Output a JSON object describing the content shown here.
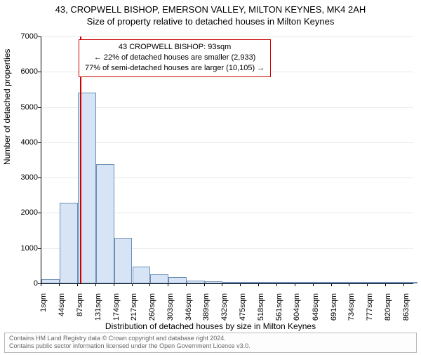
{
  "title_main": "43, CROPWELL BISHOP, EMERSON VALLEY, MILTON KEYNES, MK4 2AH",
  "title_sub": "Size of property relative to detached houses in Milton Keynes",
  "info_box": {
    "line1": "43 CROPWELL BISHOP: 93sqm",
    "line2": "← 22% of detached houses are smaller (2,933)",
    "line3": "77% of semi-detached houses are larger (10,105) →"
  },
  "y_axis_label": "Number of detached properties",
  "x_axis_label": "Distribution of detached houses by size in Milton Keynes",
  "footer": {
    "line1": "Contains HM Land Registry data © Crown copyright and database right 2024.",
    "line2": "Contains public sector information licensed under the Open Government Licence v3.0."
  },
  "chart": {
    "type": "histogram",
    "bar_fill": "#d6e4f5",
    "bar_border": "#6b8fb5",
    "marker_color": "#cc0000",
    "background_color": "#ffffff",
    "grid_color": "#e8e8e8",
    "axis_color": "#000000",
    "ylim": [
      0,
      7000
    ],
    "ytick_step": 1000,
    "y_ticks": [
      0,
      1000,
      2000,
      3000,
      4000,
      5000,
      6000,
      7000
    ],
    "x_tick_positions": [
      1,
      44,
      87,
      131,
      174,
      217,
      260,
      303,
      346,
      389,
      432,
      475,
      518,
      561,
      604,
      648,
      691,
      734,
      777,
      820,
      863
    ],
    "x_tick_labels": [
      "1sqm",
      "44sqm",
      "87sqm",
      "131sqm",
      "174sqm",
      "217sqm",
      "260sqm",
      "303sqm",
      "346sqm",
      "389sqm",
      "432sqm",
      "475sqm",
      "518sqm",
      "561sqm",
      "604sqm",
      "648sqm",
      "691sqm",
      "734sqm",
      "777sqm",
      "820sqm",
      "863sqm"
    ],
    "xlim": [
      1,
      885
    ],
    "marker_x": 93,
    "bin_width": 43,
    "bars": [
      {
        "x_center": 22.5,
        "value": 110
      },
      {
        "x_center": 65.5,
        "value": 2290
      },
      {
        "x_center": 109,
        "value": 5400
      },
      {
        "x_center": 152.5,
        "value": 3390
      },
      {
        "x_center": 195.5,
        "value": 1300
      },
      {
        "x_center": 238.5,
        "value": 470
      },
      {
        "x_center": 281.5,
        "value": 250
      },
      {
        "x_center": 324.5,
        "value": 170
      },
      {
        "x_center": 367.5,
        "value": 80
      },
      {
        "x_center": 410.5,
        "value": 55
      },
      {
        "x_center": 453.5,
        "value": 18
      },
      {
        "x_center": 496.5,
        "value": 12
      },
      {
        "x_center": 539.5,
        "value": 8
      },
      {
        "x_center": 582.5,
        "value": 7
      },
      {
        "x_center": 626,
        "value": 6
      },
      {
        "x_center": 669.5,
        "value": 5
      },
      {
        "x_center": 712.5,
        "value": 4
      },
      {
        "x_center": 755.5,
        "value": 3
      },
      {
        "x_center": 798.5,
        "value": 3
      },
      {
        "x_center": 841.5,
        "value": 3
      },
      {
        "x_center": 874,
        "value": 2
      }
    ]
  }
}
